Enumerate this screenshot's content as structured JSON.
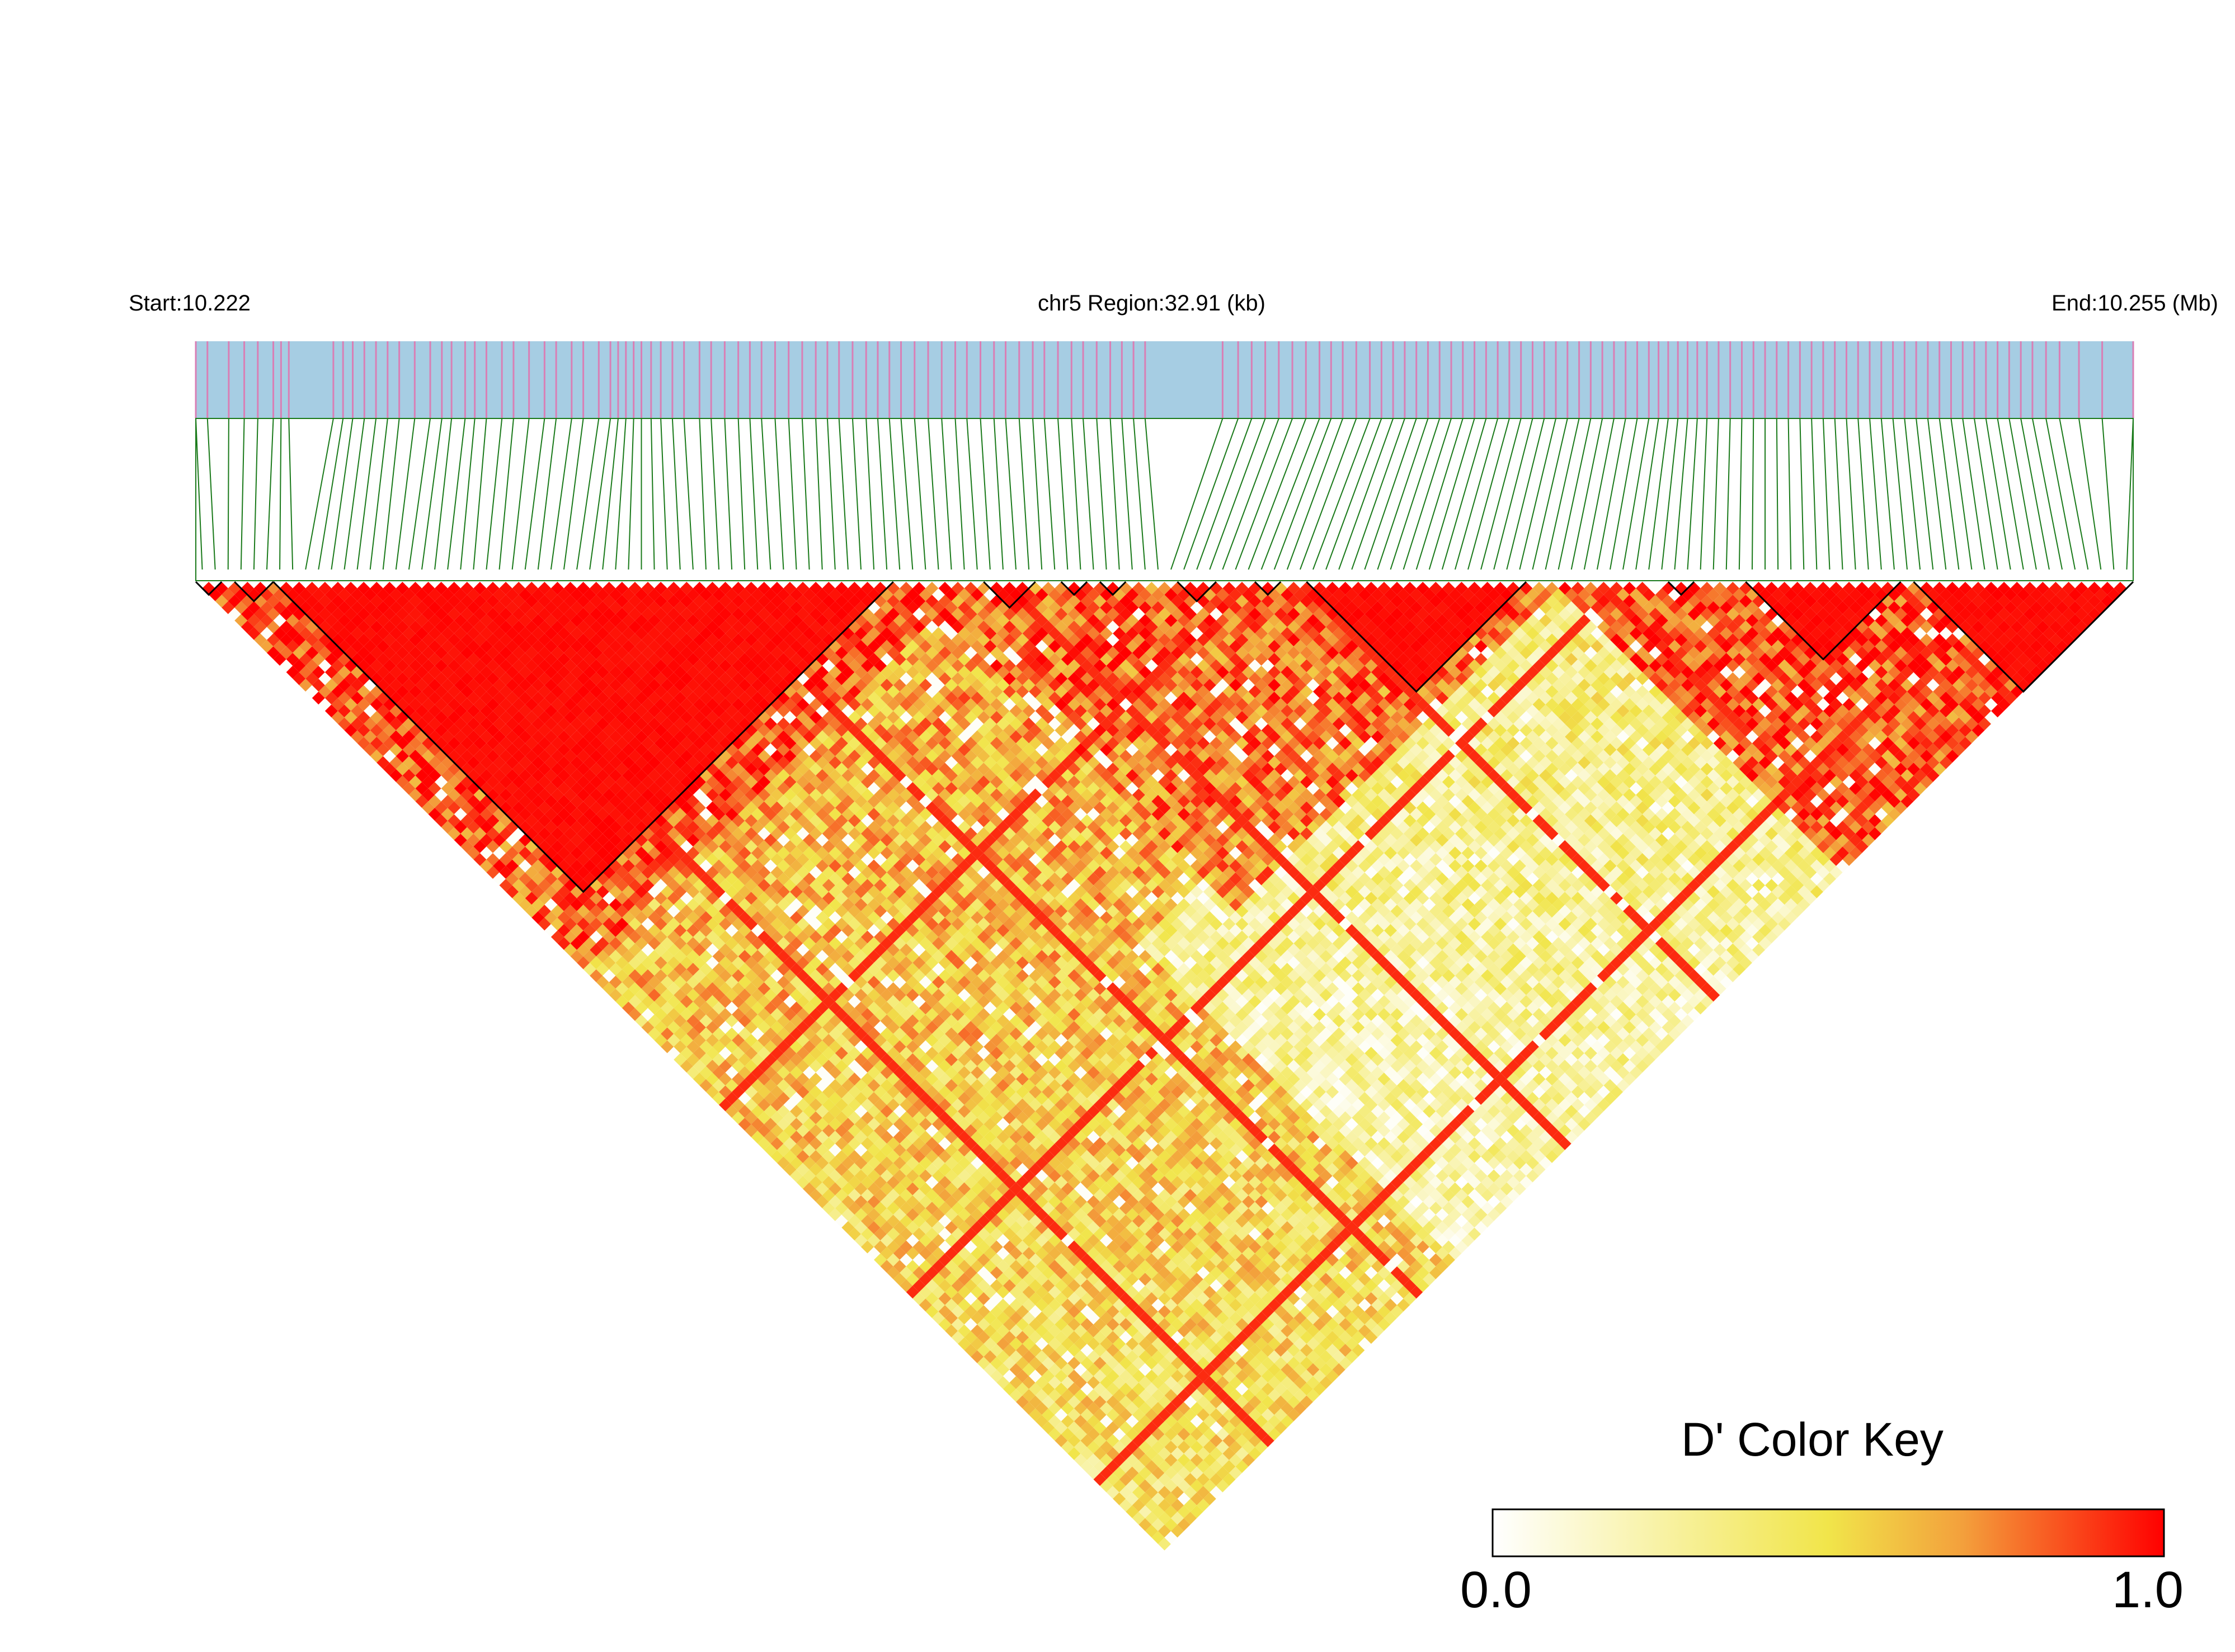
{
  "chart_data": {
    "type": "heatmap",
    "subtype": "linkage-disequilibrium-triangle",
    "chromosome": "chr5",
    "start_label": "Start:10.222",
    "region_label": "chr5 Region:32.91 (kb)",
    "end_label": "End:10.255 (Mb)",
    "start_mb": 10.222,
    "end_mb": 10.255,
    "region_kb": 32.91,
    "statistic": "D'",
    "snp_count": 150,
    "snp_positions_fraction": [
      0.0,
      0.006,
      0.017,
      0.025,
      0.032,
      0.04,
      0.044,
      0.048,
      0.071,
      0.076,
      0.081,
      0.087,
      0.093,
      0.099,
      0.105,
      0.113,
      0.121,
      0.127,
      0.132,
      0.139,
      0.144,
      0.15,
      0.158,
      0.164,
      0.172,
      0.18,
      0.186,
      0.194,
      0.2,
      0.208,
      0.214,
      0.218,
      0.222,
      0.226,
      0.23,
      0.235,
      0.24,
      0.246,
      0.252,
      0.26,
      0.266,
      0.273,
      0.28,
      0.286,
      0.292,
      0.299,
      0.306,
      0.313,
      0.32,
      0.326,
      0.332,
      0.339,
      0.346,
      0.352,
      0.358,
      0.364,
      0.371,
      0.378,
      0.385,
      0.392,
      0.398,
      0.405,
      0.412,
      0.418,
      0.425,
      0.432,
      0.438,
      0.445,
      0.452,
      0.458,
      0.465,
      0.472,
      0.478,
      0.484,
      0.49,
      0.53,
      0.538,
      0.545,
      0.552,
      0.559,
      0.566,
      0.573,
      0.58,
      0.586,
      0.592,
      0.599,
      0.606,
      0.612,
      0.618,
      0.624,
      0.63,
      0.636,
      0.642,
      0.648,
      0.654,
      0.66,
      0.666,
      0.672,
      0.678,
      0.684,
      0.69,
      0.696,
      0.702,
      0.708,
      0.714,
      0.72,
      0.726,
      0.732,
      0.738,
      0.744,
      0.75,
      0.755,
      0.76,
      0.765,
      0.77,
      0.775,
      0.78,
      0.786,
      0.792,
      0.798,
      0.804,
      0.81,
      0.816,
      0.822,
      0.828,
      0.834,
      0.84,
      0.846,
      0.852,
      0.858,
      0.864,
      0.87,
      0.876,
      0.882,
      0.888,
      0.894,
      0.9,
      0.906,
      0.912,
      0.918,
      0.924,
      0.93,
      0.936,
      0.942,
      0.948,
      0.955,
      0.962,
      0.972,
      0.984,
      1.0
    ],
    "haplotype_blocks": [
      {
        "from_snp": 0,
        "to_snp": 2
      },
      {
        "from_snp": 3,
        "to_snp": 6
      },
      {
        "from_snp": 6,
        "to_snp": 54
      },
      {
        "from_snp": 61,
        "to_snp": 65
      },
      {
        "from_snp": 67,
        "to_snp": 69
      },
      {
        "from_snp": 70,
        "to_snp": 72
      },
      {
        "from_snp": 76,
        "to_snp": 79
      },
      {
        "from_snp": 82,
        "to_snp": 84
      },
      {
        "from_snp": 86,
        "to_snp": 103
      },
      {
        "from_snp": 114,
        "to_snp": 116
      },
      {
        "from_snp": 120,
        "to_snp": 132
      },
      {
        "from_snp": 133,
        "to_snp": 150
      }
    ],
    "ld_pattern": {
      "description_regions": [
        {
          "snp_from": 0,
          "snp_to": 60,
          "dprime_level": 0.95
        },
        {
          "snp_from": 60,
          "snp_to": 105,
          "dprime_level": 0.85
        },
        {
          "snp_from": 105,
          "snp_to": 150,
          "dprime_level": 0.9
        },
        {
          "cross_from": [
            50,
            100
          ],
          "cross_to": [
            100,
            150
          ],
          "dprime_level": 0.4
        }
      ]
    },
    "color_scale": {
      "title": "D' Color Key",
      "min": 0.0,
      "max": 1.0,
      "min_label": "0.0",
      "max_label": "1.0",
      "stops": [
        "#ffffff",
        "#f1e54a",
        "#f3a03c",
        "#ff0000"
      ]
    },
    "colors": {
      "gene_track": "#a6cde3",
      "snp_tick": "#d97fb5",
      "connector": "#1a7a1a"
    }
  }
}
